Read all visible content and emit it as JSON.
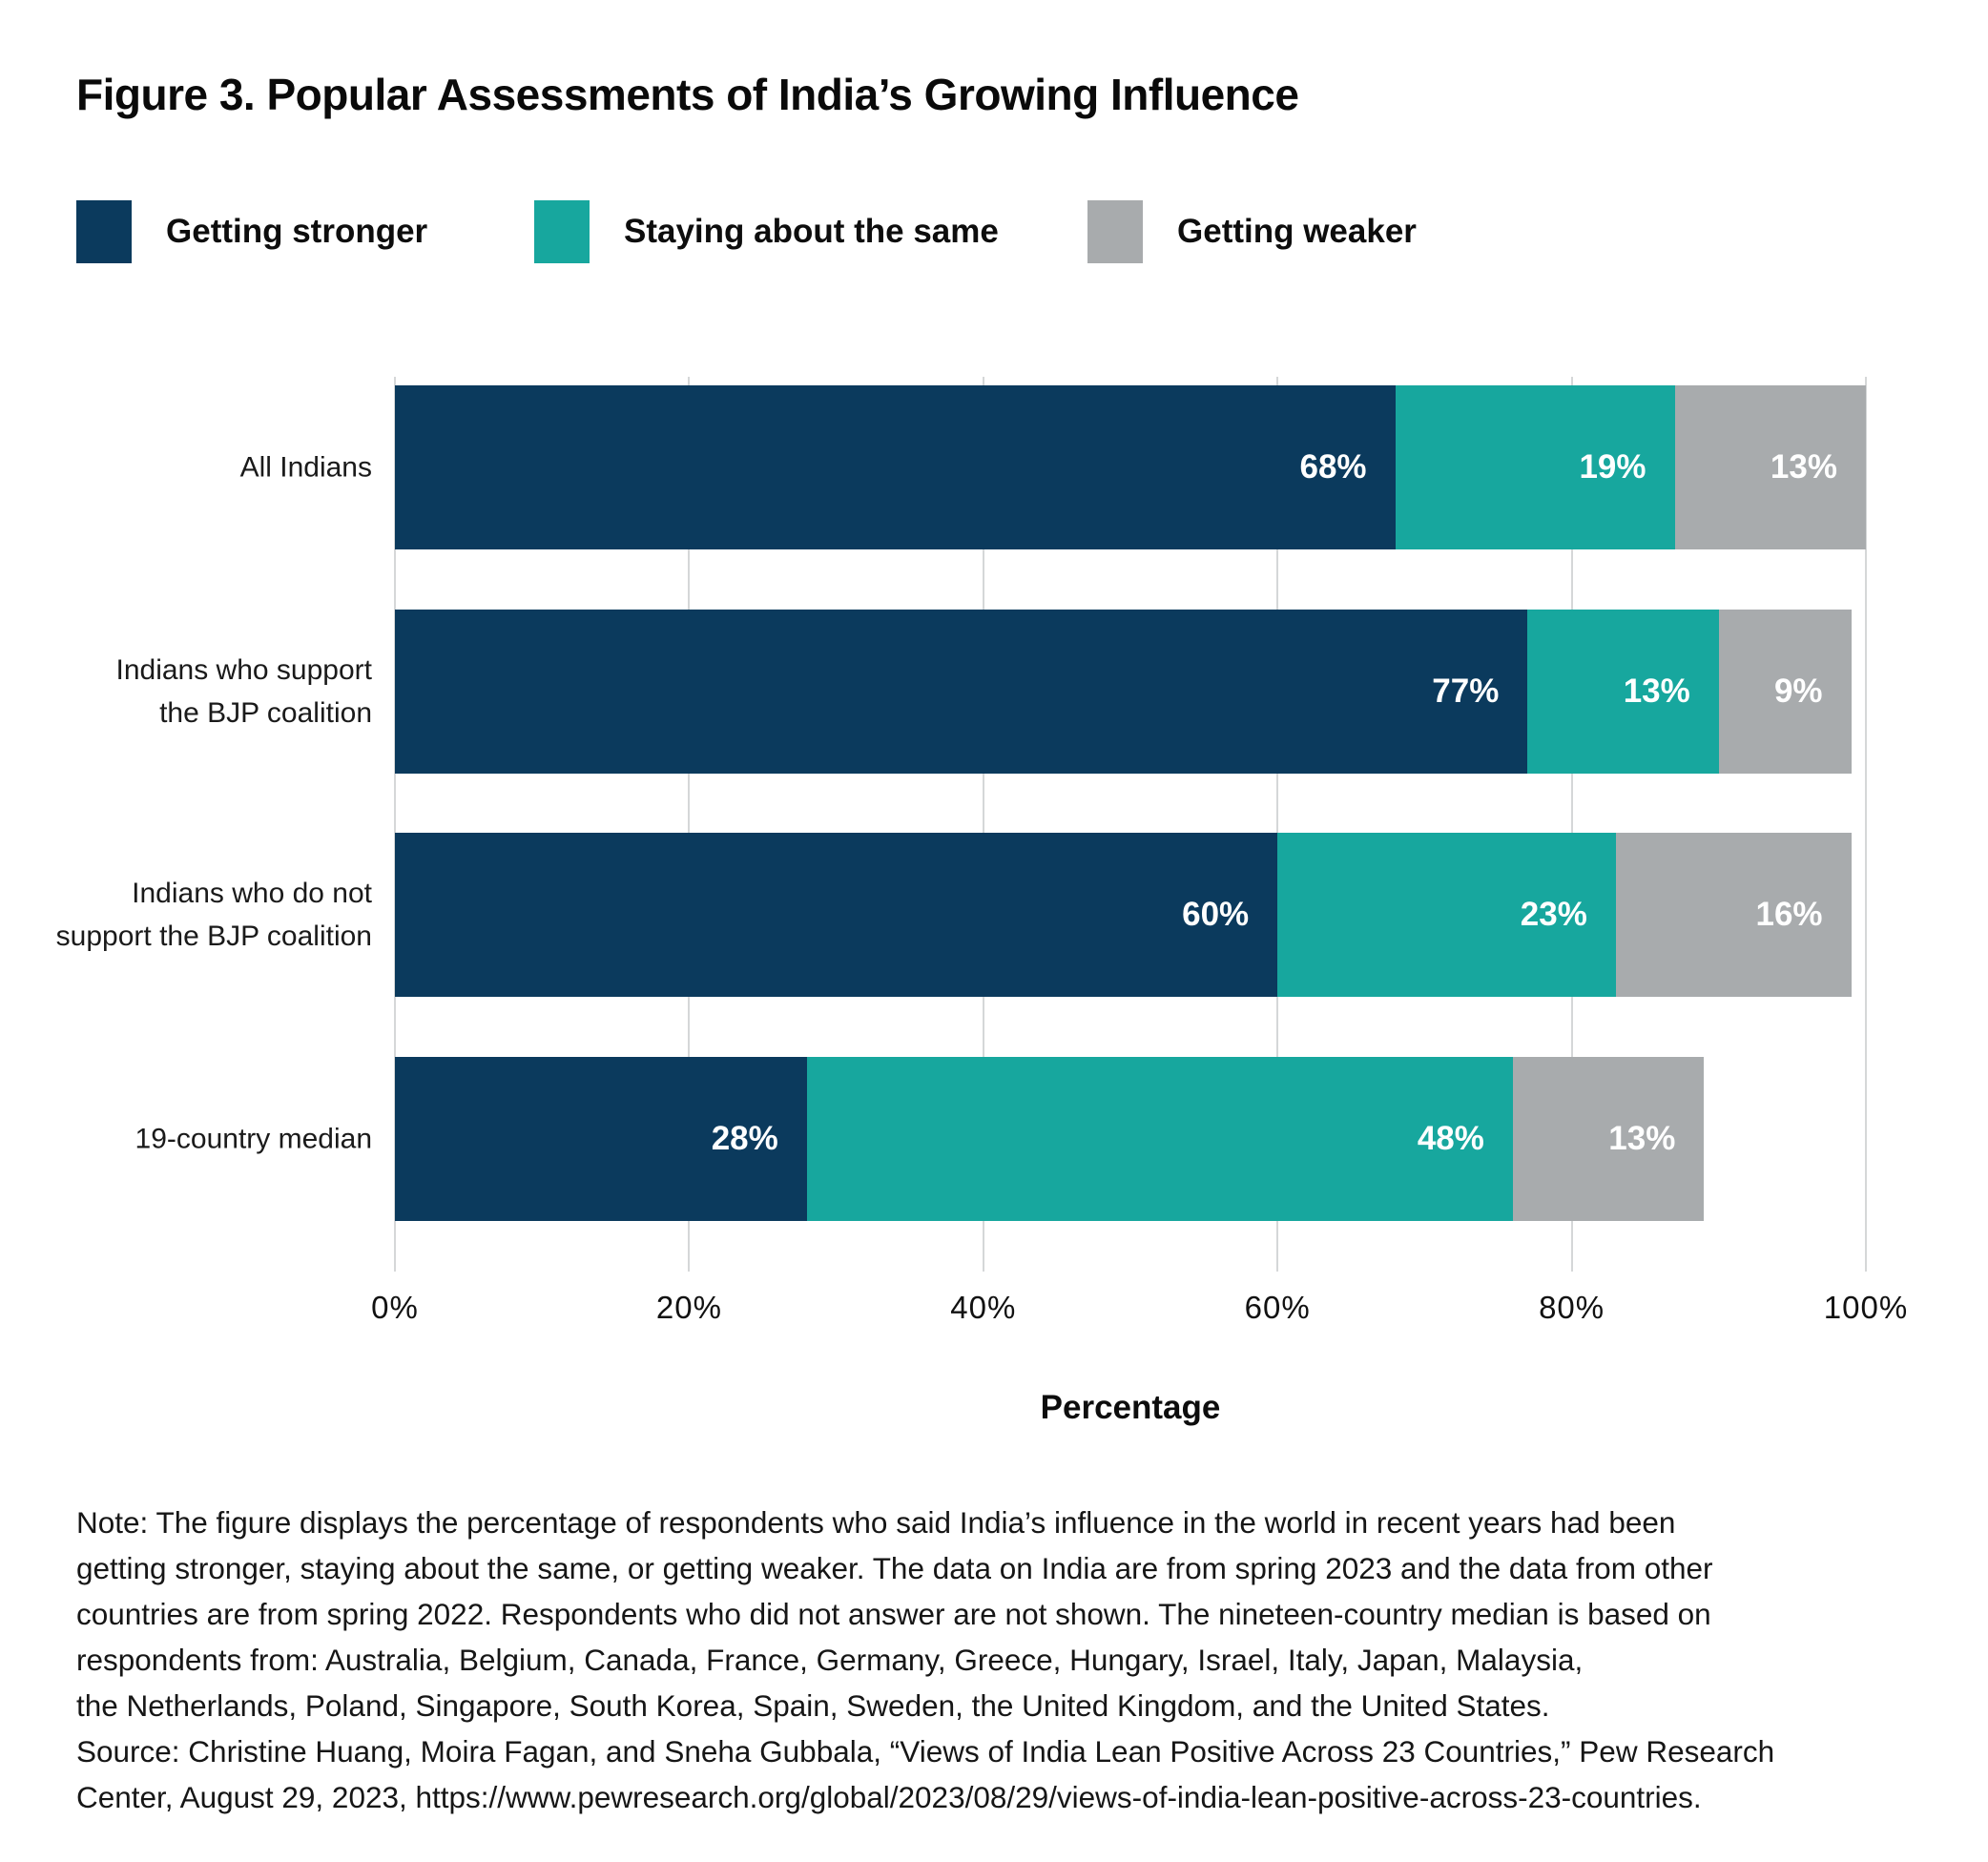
{
  "figure": {
    "note": "Note: The figure displays the percentage of respondents who said India’s influence in the world in recent years had been\ngetting stronger, staying about the same, or getting weaker. The data on India are from spring 2023 and the data from other\ncountries are from spring 2022. Respondents who did not answer are not shown. The nineteen-country median is based on\nrespondents from: Australia, Belgium, Canada, France, Germany, Greece, Hungary, Israel, Italy, Japan, Malaysia,\nthe Netherlands, Poland, Singapore, South Korea, Spain, Sweden, the United Kingdom, and the United States.\nSource: Christine Huang, Moira Fagan, and Sneha Gubbala, “Views of India Lean Positive Across 23 Countries,” Pew Research\nCenter, August 29, 2023, https://www.pewresearch.org/global/2023/08/29/views-of-india-lean-positive-across-23-countries."
  },
  "chart_data": {
    "type": "bar",
    "stacked": true,
    "orientation": "horizontal",
    "title": "Figure 3. Popular Assessments of India’s Growing Influence",
    "categories": [
      "All Indians",
      "Indians who support\nthe BJP coalition",
      "Indians who do not\nsupport the BJP coalition",
      "19-country median"
    ],
    "series": [
      {
        "name": "Getting stronger",
        "color": "#0b3a5d",
        "values": [
          68,
          77,
          60,
          28
        ]
      },
      {
        "name": "Staying about the same",
        "color": "#17a79e",
        "values": [
          19,
          13,
          23,
          48
        ]
      },
      {
        "name": "Getting weaker",
        "color": "#a8abad",
        "values": [
          13,
          9,
          16,
          13
        ]
      }
    ],
    "value_label_suffix": "%",
    "xlabel": "Percentage",
    "xlim": [
      0,
      100
    ],
    "x_ticks": [
      0,
      20,
      40,
      60,
      80,
      100
    ],
    "x_tick_suffix": "%",
    "grid": "vertical",
    "gridline_color": "#d5d7d8",
    "legend_position": "top",
    "value_labels_color": "#ffffff"
  }
}
